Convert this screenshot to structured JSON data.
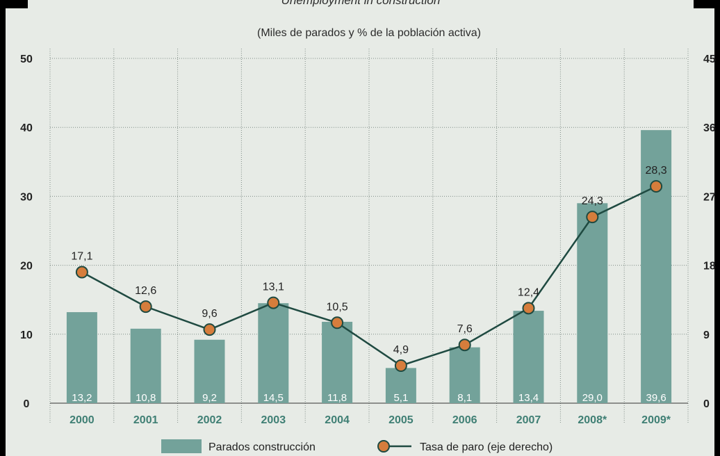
{
  "header_text": "Unemployment in construction",
  "colors": {
    "background": "#e7ebe6",
    "bar": "#73a29a",
    "line": "#1f4a41",
    "marker": "#d67d3c",
    "category_text": "#3f7f74"
  },
  "chart_data": {
    "type": "bar",
    "subtitle": "(Miles de parados y % de la población activa)",
    "categories": [
      "2000",
      "2001",
      "2002",
      "2003",
      "2004",
      "2005",
      "2006",
      "2007",
      "2008*",
      "2009*"
    ],
    "series": [
      {
        "name": "Parados construcción",
        "type": "bar",
        "axis": "left",
        "values": [
          13.2,
          10.8,
          9.2,
          14.5,
          11.8,
          5.1,
          8.1,
          13.4,
          29.0,
          39.6
        ],
        "labels": [
          "13,2",
          "10,8",
          "9,2",
          "14,5",
          "11,8",
          "5,1",
          "8,1",
          "13,4",
          "29,0",
          "39,6"
        ]
      },
      {
        "name": "Tasa de paro (eje derecho)",
        "type": "line",
        "axis": "right",
        "values": [
          17.1,
          12.6,
          9.6,
          13.1,
          10.5,
          4.9,
          7.6,
          12.4,
          24.3,
          28.3
        ],
        "labels": [
          "17,1",
          "12,6",
          "9,6",
          "13,1",
          "10,5",
          "4,9",
          "7,6",
          "12,4",
          "24,3",
          "28,3"
        ]
      }
    ],
    "y_left": {
      "ticks": [
        "0",
        "10",
        "20",
        "30",
        "40",
        "50"
      ],
      "range": [
        0,
        50
      ]
    },
    "y_right": {
      "ticks": [
        "0",
        "9",
        "18",
        "27",
        "36",
        "45"
      ],
      "range": [
        0,
        45
      ]
    },
    "grid": true,
    "legend_position": "bottom"
  }
}
